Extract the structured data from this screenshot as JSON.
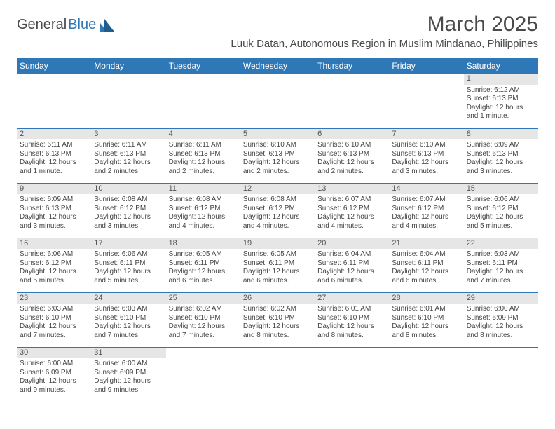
{
  "logo": {
    "general": "Genera",
    "l": "l",
    "blue": "Blue"
  },
  "title": "March 2025",
  "location": "Luuk Datan, Autonomous Region in Muslim Mindanao, Philippines",
  "colors": {
    "brand_blue": "#2f78b7",
    "header_fg": "#ffffff",
    "grey_band": "#e6e6e6",
    "text": "#4a4a4a"
  },
  "day_headers": [
    "Sunday",
    "Monday",
    "Tuesday",
    "Wednesday",
    "Thursday",
    "Friday",
    "Saturday"
  ],
  "weeks": [
    [
      null,
      null,
      null,
      null,
      null,
      null,
      {
        "n": "1",
        "sr": "6:12 AM",
        "ss": "6:13 PM",
        "dl": "12 hours and 1 minute."
      }
    ],
    [
      {
        "n": "2",
        "sr": "6:11 AM",
        "ss": "6:13 PM",
        "dl": "12 hours and 1 minute."
      },
      {
        "n": "3",
        "sr": "6:11 AM",
        "ss": "6:13 PM",
        "dl": "12 hours and 2 minutes."
      },
      {
        "n": "4",
        "sr": "6:11 AM",
        "ss": "6:13 PM",
        "dl": "12 hours and 2 minutes."
      },
      {
        "n": "5",
        "sr": "6:10 AM",
        "ss": "6:13 PM",
        "dl": "12 hours and 2 minutes."
      },
      {
        "n": "6",
        "sr": "6:10 AM",
        "ss": "6:13 PM",
        "dl": "12 hours and 2 minutes."
      },
      {
        "n": "7",
        "sr": "6:10 AM",
        "ss": "6:13 PM",
        "dl": "12 hours and 3 minutes."
      },
      {
        "n": "8",
        "sr": "6:09 AM",
        "ss": "6:13 PM",
        "dl": "12 hours and 3 minutes."
      }
    ],
    [
      {
        "n": "9",
        "sr": "6:09 AM",
        "ss": "6:13 PM",
        "dl": "12 hours and 3 minutes."
      },
      {
        "n": "10",
        "sr": "6:08 AM",
        "ss": "6:12 PM",
        "dl": "12 hours and 3 minutes."
      },
      {
        "n": "11",
        "sr": "6:08 AM",
        "ss": "6:12 PM",
        "dl": "12 hours and 4 minutes."
      },
      {
        "n": "12",
        "sr": "6:08 AM",
        "ss": "6:12 PM",
        "dl": "12 hours and 4 minutes."
      },
      {
        "n": "13",
        "sr": "6:07 AM",
        "ss": "6:12 PM",
        "dl": "12 hours and 4 minutes."
      },
      {
        "n": "14",
        "sr": "6:07 AM",
        "ss": "6:12 PM",
        "dl": "12 hours and 4 minutes."
      },
      {
        "n": "15",
        "sr": "6:06 AM",
        "ss": "6:12 PM",
        "dl": "12 hours and 5 minutes."
      }
    ],
    [
      {
        "n": "16",
        "sr": "6:06 AM",
        "ss": "6:12 PM",
        "dl": "12 hours and 5 minutes."
      },
      {
        "n": "17",
        "sr": "6:06 AM",
        "ss": "6:11 PM",
        "dl": "12 hours and 5 minutes."
      },
      {
        "n": "18",
        "sr": "6:05 AM",
        "ss": "6:11 PM",
        "dl": "12 hours and 6 minutes."
      },
      {
        "n": "19",
        "sr": "6:05 AM",
        "ss": "6:11 PM",
        "dl": "12 hours and 6 minutes."
      },
      {
        "n": "20",
        "sr": "6:04 AM",
        "ss": "6:11 PM",
        "dl": "12 hours and 6 minutes."
      },
      {
        "n": "21",
        "sr": "6:04 AM",
        "ss": "6:11 PM",
        "dl": "12 hours and 6 minutes."
      },
      {
        "n": "22",
        "sr": "6:03 AM",
        "ss": "6:11 PM",
        "dl": "12 hours and 7 minutes."
      }
    ],
    [
      {
        "n": "23",
        "sr": "6:03 AM",
        "ss": "6:10 PM",
        "dl": "12 hours and 7 minutes."
      },
      {
        "n": "24",
        "sr": "6:03 AM",
        "ss": "6:10 PM",
        "dl": "12 hours and 7 minutes."
      },
      {
        "n": "25",
        "sr": "6:02 AM",
        "ss": "6:10 PM",
        "dl": "12 hours and 7 minutes."
      },
      {
        "n": "26",
        "sr": "6:02 AM",
        "ss": "6:10 PM",
        "dl": "12 hours and 8 minutes."
      },
      {
        "n": "27",
        "sr": "6:01 AM",
        "ss": "6:10 PM",
        "dl": "12 hours and 8 minutes."
      },
      {
        "n": "28",
        "sr": "6:01 AM",
        "ss": "6:10 PM",
        "dl": "12 hours and 8 minutes."
      },
      {
        "n": "29",
        "sr": "6:00 AM",
        "ss": "6:09 PM",
        "dl": "12 hours and 8 minutes."
      }
    ],
    [
      {
        "n": "30",
        "sr": "6:00 AM",
        "ss": "6:09 PM",
        "dl": "12 hours and 9 minutes."
      },
      {
        "n": "31",
        "sr": "6:00 AM",
        "ss": "6:09 PM",
        "dl": "12 hours and 9 minutes."
      },
      null,
      null,
      null,
      null,
      null
    ]
  ],
  "labels": {
    "sunrise": "Sunrise: ",
    "sunset": "Sunset: ",
    "daylight": "Daylight: "
  }
}
